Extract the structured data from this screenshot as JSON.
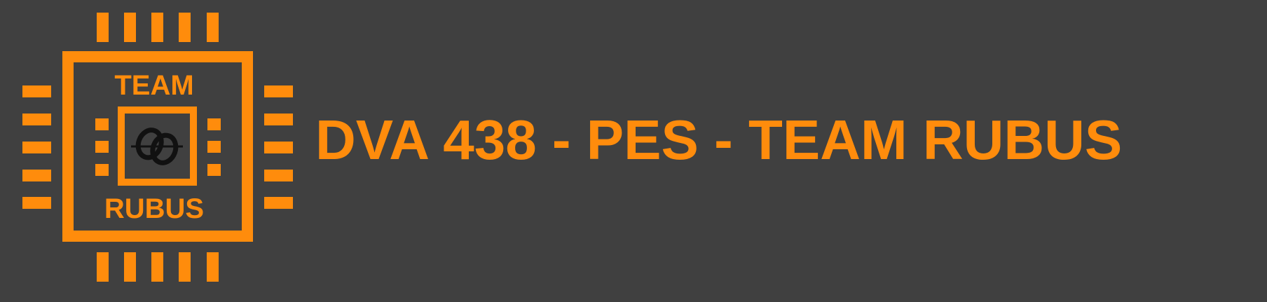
{
  "logo": {
    "top_text": "TEAM",
    "bottom_text": "RUBUS",
    "icon": "cpu-chip-icon",
    "center_symbol": "interlocked-rings-icon",
    "color": "#ff8c0c"
  },
  "banner": {
    "title": "DVA 438 - PES - TEAM RUBUS",
    "background": "#404040",
    "text_color": "#ff8c0c"
  }
}
